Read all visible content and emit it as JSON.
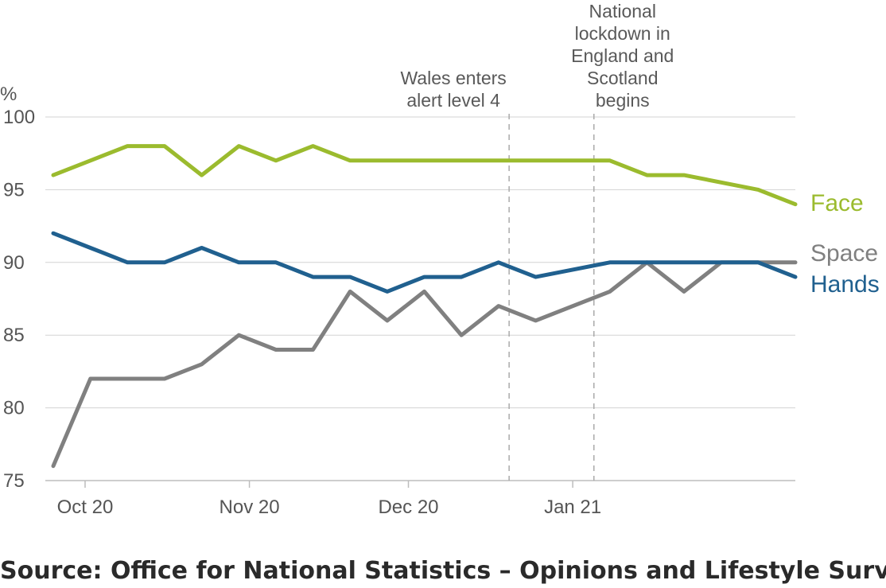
{
  "chart_data": {
    "type": "line",
    "ylabel": "%",
    "ylim": [
      75,
      100
    ],
    "yticks": [
      75,
      80,
      85,
      90,
      95,
      100
    ],
    "x_axis": {
      "start_date": "2020-09-25",
      "end_date": "2021-02-12",
      "ticks": [
        {
          "label": "Oct 20",
          "date": "2020-10-01"
        },
        {
          "label": "Nov 20",
          "date": "2020-11-01"
        },
        {
          "label": "Dec 20",
          "date": "2020-12-01"
        },
        {
          "label": "Jan 21",
          "date": "2021-01-01"
        }
      ]
    },
    "x": [
      "2020-09-25",
      "2020-10-02",
      "2020-10-09",
      "2020-10-16",
      "2020-10-23",
      "2020-10-30",
      "2020-11-06",
      "2020-11-13",
      "2020-11-20",
      "2020-11-27",
      "2020-12-04",
      "2020-12-11",
      "2020-12-18",
      "2020-12-25",
      "2021-01-01",
      "2021-01-08",
      "2021-01-15",
      "2021-01-22",
      "2021-01-29",
      "2021-02-05",
      "2021-02-12"
    ],
    "series": [
      {
        "name": "Face",
        "color": "#9bbb2e",
        "values": [
          96,
          97,
          98,
          98,
          96,
          98,
          97,
          98,
          97,
          97,
          97,
          97,
          97,
          97,
          null,
          97,
          96,
          96,
          null,
          95,
          94
        ]
      },
      {
        "name": "Space",
        "color": "#808080",
        "values": [
          76,
          82,
          82,
          82,
          83,
          85,
          84,
          84,
          88,
          86,
          88,
          85,
          87,
          86,
          null,
          88,
          90,
          88,
          90,
          90,
          90
        ]
      },
      {
        "name": "Hands",
        "color": "#20608f",
        "values": [
          92,
          91,
          90,
          90,
          91,
          90,
          90,
          89,
          89,
          88,
          89,
          89,
          90,
          89,
          null,
          90,
          90,
          90,
          90,
          90,
          89
        ]
      }
    ],
    "annotations": [
      {
        "date": "2020-12-20",
        "lines": [
          "Wales enters",
          "alert level 4"
        ]
      },
      {
        "date": "2021-01-05",
        "lines": [
          "National",
          "lockdown in",
          "England and",
          "Scotland",
          "begins"
        ]
      }
    ],
    "grid": true,
    "legend": "right, end of lines"
  },
  "source": "Source: Office for National Statistics – Opinions and Lifestyle Survey"
}
